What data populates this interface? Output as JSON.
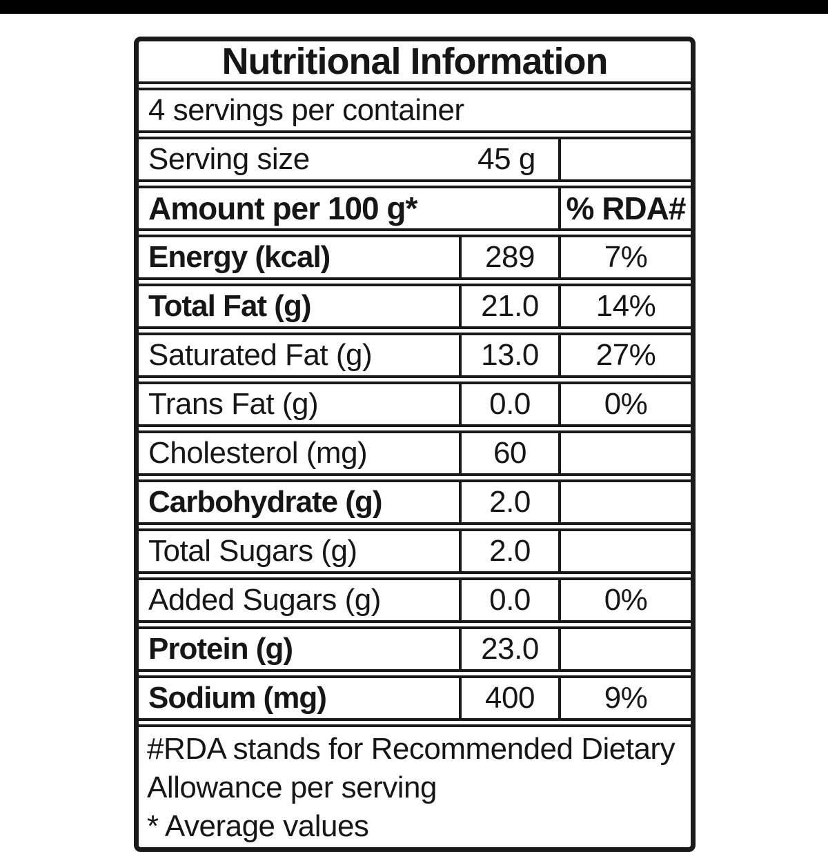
{
  "page": {
    "top_bar_color": "#000000",
    "background_color": "#ffffff"
  },
  "table": {
    "title": "Nutritional Information",
    "servings_line": "4 servings per container",
    "serving_size": {
      "label": "Serving size",
      "value": "45 g"
    },
    "header": {
      "amount_label": "Amount per 100 g*",
      "rda_label": "% RDA#"
    },
    "rows": [
      {
        "label": "Energy (kcal)",
        "value": "289",
        "rda": "7%"
      },
      {
        "label": "Total Fat (g)",
        "value": "21.0",
        "rda": "14%"
      },
      {
        "label": "Saturated Fat (g)",
        "value": "13.0",
        "rda": "27%"
      },
      {
        "label": "Trans Fat (g)",
        "value": "0.0",
        "rda": "0%"
      },
      {
        "label": "Cholesterol (mg)",
        "value": "60",
        "rda": ""
      },
      {
        "label": "Carbohydrate (g)",
        "value": "2.0",
        "rda": ""
      },
      {
        "label": "Total Sugars (g)",
        "value": "2.0",
        "rda": ""
      },
      {
        "label": "Added Sugars (g)",
        "value": "0.0",
        "rda": "0%"
      },
      {
        "label": "Protein (g)",
        "value": "23.0",
        "rda": ""
      },
      {
        "label": "Sodium (mg)",
        "value": "400",
        "rda": "9%"
      }
    ],
    "footnotes": [
      "#RDA stands for Recommended Dietary Allowance per serving",
      "* Average values"
    ]
  }
}
